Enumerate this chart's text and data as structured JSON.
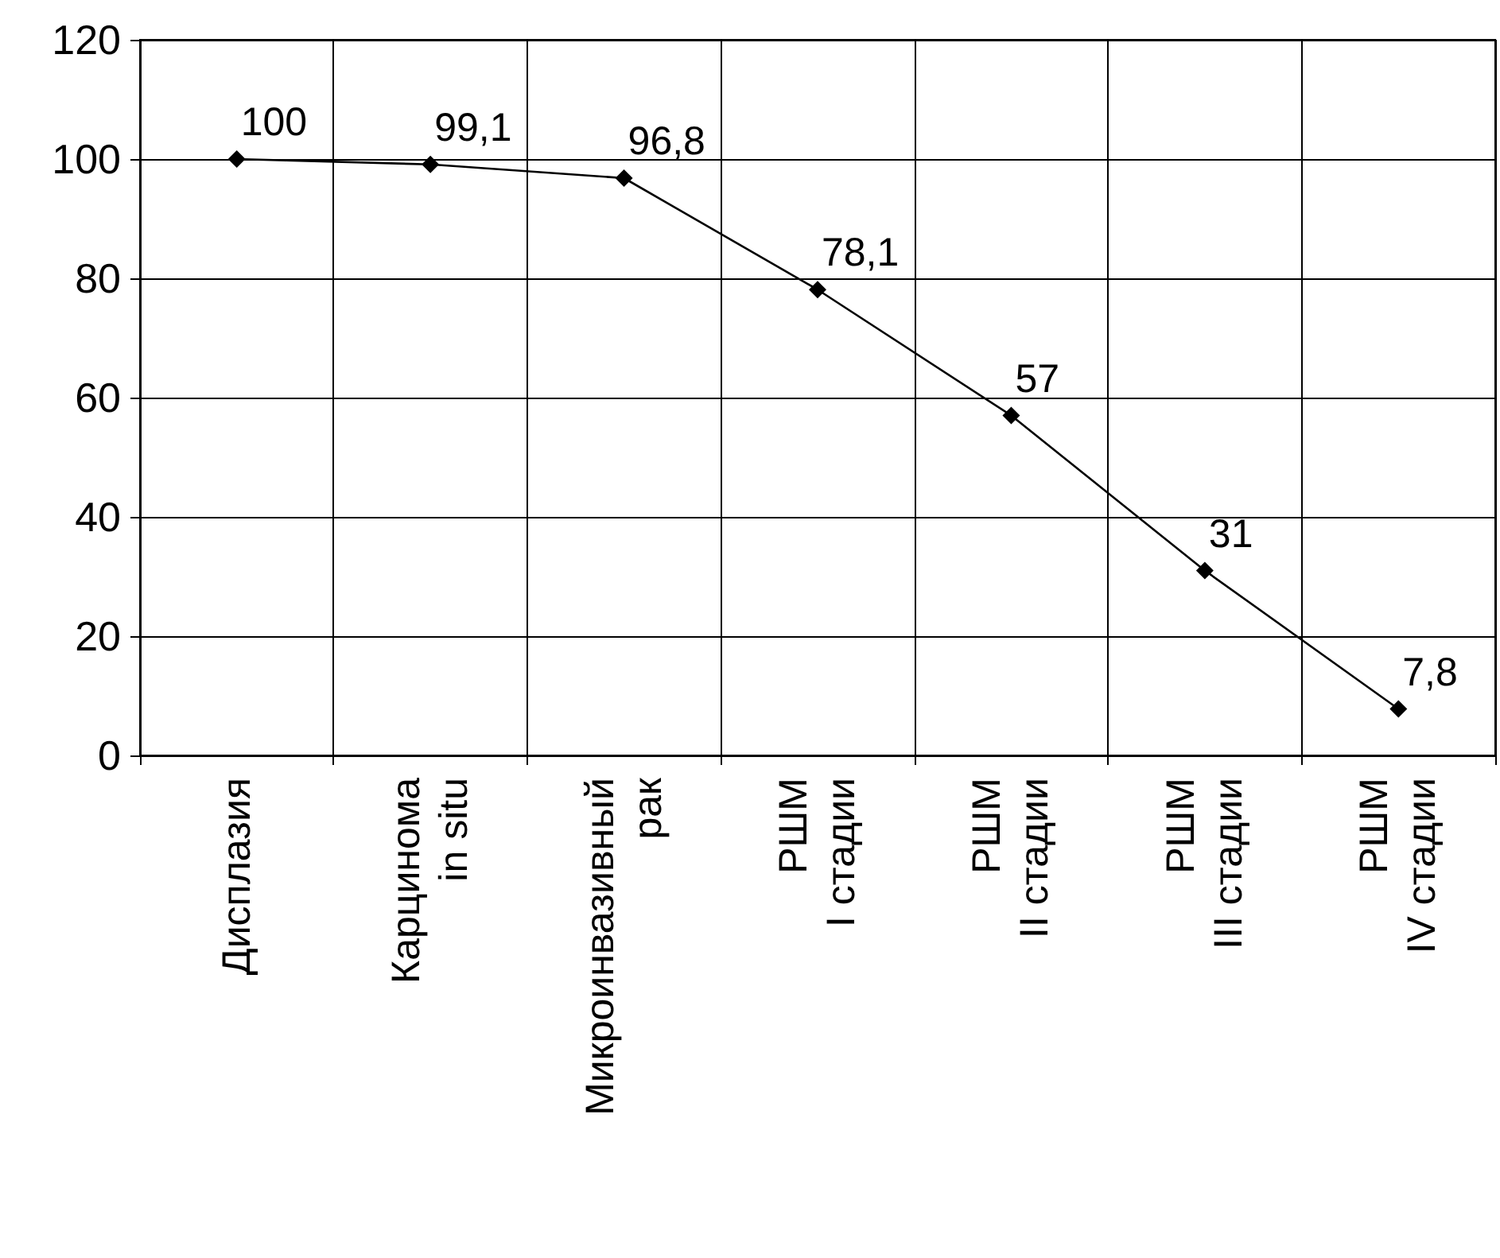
{
  "chart_data": {
    "type": "line",
    "categories": [
      "Дисплазия",
      "Карцинома\nin situ",
      "Микроинвазивный\nрак",
      "РШМ\nI стадии",
      "РШМ\nII стадии",
      "РШМ\nIII стадии",
      "РШМ\nIV стадии"
    ],
    "series": [
      {
        "color": "#000000",
        "values": [
          100,
          99.1,
          96.8,
          78.1,
          57,
          31,
          7.8
        ],
        "value_labels": [
          "100",
          "99,1",
          "96,8",
          "78,1",
          "57",
          "31",
          "7,8"
        ]
      }
    ],
    "ylim": [
      0,
      120
    ],
    "yticks": [
      0,
      20,
      40,
      60,
      80,
      100,
      120
    ],
    "grid": true,
    "marker": "diamond",
    "line_style": "solid"
  }
}
